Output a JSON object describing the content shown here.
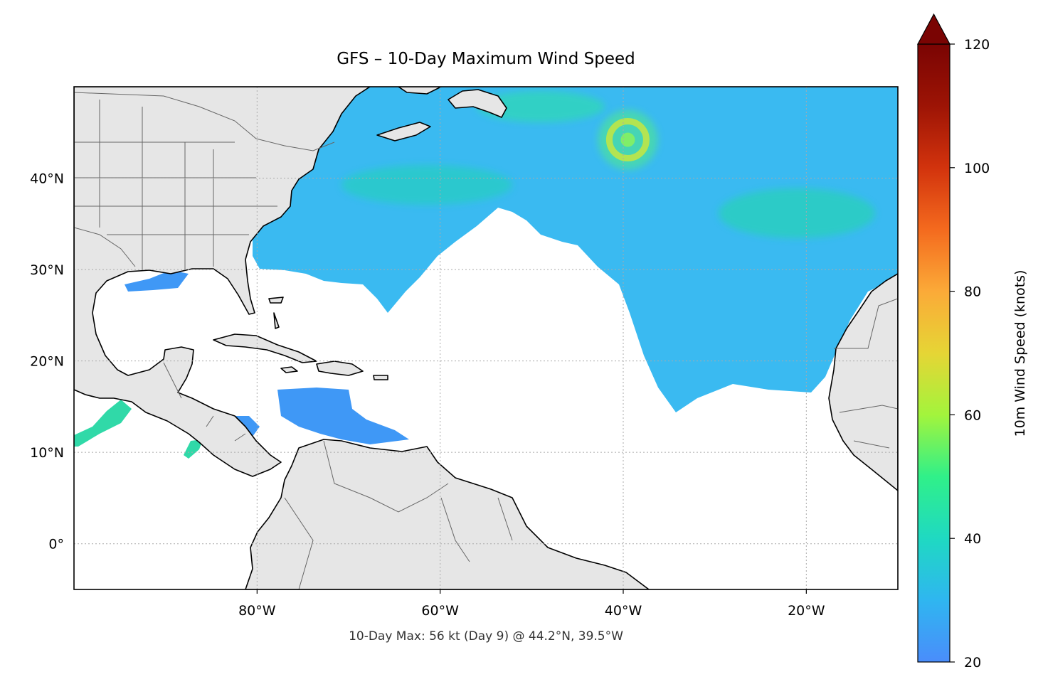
{
  "title": "GFS – 10-Day Maximum Wind Speed",
  "caption": "10-Day Max: 56 kt (Day 9) @ 44.2°N, 39.5°W",
  "map": {
    "lon_range": [
      -100,
      -10
    ],
    "lat_range": [
      -5,
      50
    ],
    "lon_ticks": [
      {
        "value": -80,
        "label": "80°W"
      },
      {
        "value": -60,
        "label": "60°W"
      },
      {
        "value": -40,
        "label": "40°W"
      },
      {
        "value": -20,
        "label": "20°W"
      }
    ],
    "lat_ticks": [
      {
        "value": 40,
        "label": "40°N"
      },
      {
        "value": 30,
        "label": "30°N"
      },
      {
        "value": 20,
        "label": "20°N"
      },
      {
        "value": 10,
        "label": "10°N"
      },
      {
        "value": 0,
        "label": "0°"
      }
    ],
    "gridlines": true,
    "land_color": "#e6e6e6",
    "coast_color": "#000000",
    "border_color": "#666666"
  },
  "colorbar": {
    "label": "10m Wind Speed (knots)",
    "min": 20,
    "max": 120,
    "ticks": [
      {
        "value": 20,
        "label": "20"
      },
      {
        "value": 40,
        "label": "40"
      },
      {
        "value": 60,
        "label": "60"
      },
      {
        "value": 80,
        "label": "80"
      },
      {
        "value": 100,
        "label": "100"
      },
      {
        "value": 120,
        "label": "120"
      }
    ],
    "colors": [
      "#4a8dfb",
      "#2fb6f0",
      "#1fd9c2",
      "#30f089",
      "#a3f43c",
      "#e6d535",
      "#fbaa38",
      "#f46a1e",
      "#d2330d",
      "#9d1405",
      "#7a0403"
    ],
    "extend": "max"
  },
  "wind_max_location": {
    "lat": 44.2,
    "lon": -39.5,
    "value_kt": 56
  }
}
